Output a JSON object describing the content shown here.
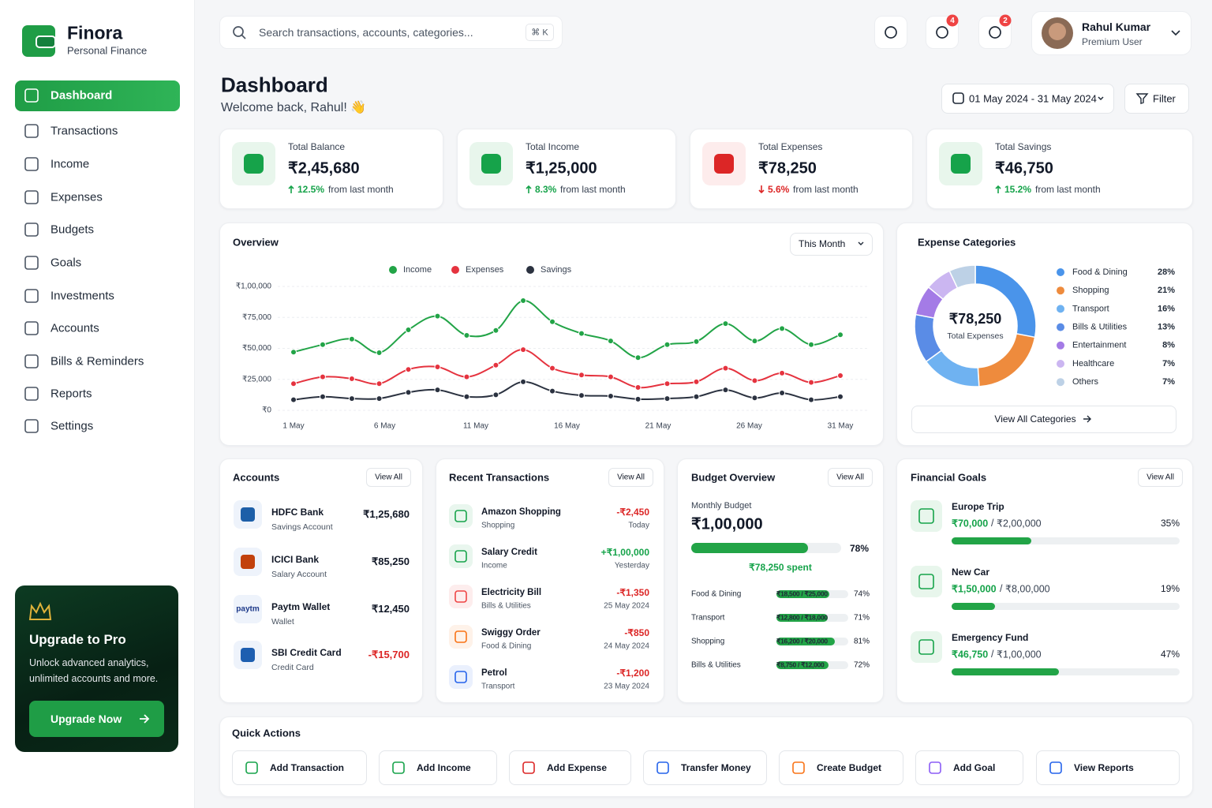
{
  "brand": {
    "name": "Finora",
    "tagline": "Personal Finance"
  },
  "nav": {
    "active": 0,
    "items": [
      "Dashboard",
      "Transactions",
      "Income",
      "Expenses",
      "Budgets",
      "Goals",
      "Investments",
      "Accounts",
      "Bills & Reminders",
      "Reports",
      "Settings"
    ]
  },
  "upgrade": {
    "title": "Upgrade to Pro",
    "text": "Unlock advanced analytics, unlimited accounts and more.",
    "button": "Upgrade Now"
  },
  "topbar": {
    "search_placeholder": "Search transactions, accounts, categories...",
    "shortcut": "⌘ K",
    "notifications": 4,
    "messages": 2,
    "user": {
      "name": "Rahul Kumar",
      "role": "Premium User"
    }
  },
  "header": {
    "title": "Dashboard",
    "welcome": "Welcome back, Rahul! 👋",
    "date_range": "01 May 2024 - 31 May 2024",
    "filter": "Filter"
  },
  "stats": [
    {
      "label": "Total Balance",
      "value": "₹2,45,680",
      "change": "12.5%",
      "direction": "up",
      "note": "from last month",
      "color": "#16a34a"
    },
    {
      "label": "Total Income",
      "value": "₹1,25,000",
      "change": "8.3%",
      "direction": "up",
      "note": "from last month",
      "color": "#16a34a"
    },
    {
      "label": "Total Expenses",
      "value": "₹78,250",
      "change": "5.6%",
      "direction": "down",
      "note": "from last month",
      "color": "#dc2626"
    },
    {
      "label": "Total Savings",
      "value": "₹46,750",
      "change": "15.2%",
      "direction": "up",
      "note": "from last month",
      "color": "#16a34a"
    }
  ],
  "chart_data": [
    {
      "type": "line",
      "title": "Overview",
      "control": "This Month",
      "grid": true,
      "legend": "top",
      "x": [
        1,
        2.6,
        4.2,
        5.7,
        7.3,
        8.9,
        10.5,
        12.1,
        13.6,
        15.2,
        16.8,
        18.4,
        19.9,
        21.5,
        23.1,
        24.7,
        26.3,
        27.8,
        29.4,
        31
      ],
      "xlim": [
        1,
        31
      ],
      "xticks": [
        {
          "value": 1,
          "label": "1 May"
        },
        {
          "value": 6,
          "label": "6 May"
        },
        {
          "value": 11,
          "label": "11 May"
        },
        {
          "value": 16,
          "label": "16 May"
        },
        {
          "value": 21,
          "label": "21 May"
        },
        {
          "value": 26,
          "label": "26 May"
        },
        {
          "value": 31,
          "label": "31 May"
        }
      ],
      "ylim": [
        0,
        100000
      ],
      "yticks": [
        {
          "value": 0,
          "label": "₹0"
        },
        {
          "value": 25000,
          "label": "₹25,000"
        },
        {
          "value": 50000,
          "label": "₹50,000"
        },
        {
          "value": 75000,
          "label": "₹75,000"
        },
        {
          "value": 100000,
          "label": "₹1,00,000"
        }
      ],
      "series": [
        {
          "name": "Income",
          "color": "#22a447",
          "values": [
            47000,
            53000,
            57500,
            46500,
            65000,
            76000,
            60500,
            64500,
            88500,
            71500,
            62000,
            56000,
            42500,
            53000,
            55500,
            70000,
            56000,
            66000,
            53000,
            61000
          ]
        },
        {
          "name": "Expenses",
          "color": "#e5333f",
          "values": [
            21500,
            27000,
            25500,
            21500,
            33000,
            35000,
            27000,
            36500,
            49000,
            34000,
            28500,
            27000,
            18500,
            21500,
            23000,
            34000,
            24000,
            30000,
            22500,
            28000
          ]
        },
        {
          "name": "Savings",
          "color": "#2b3240",
          "values": [
            8500,
            11000,
            9500,
            9500,
            14500,
            16500,
            11000,
            12500,
            23000,
            15500,
            12000,
            11500,
            9000,
            9500,
            11000,
            16500,
            10000,
            14000,
            8500,
            11000
          ]
        }
      ]
    },
    {
      "type": "donut",
      "title": "Expense Categories",
      "center_value": "₹78,250",
      "center_label": "Total Expenses",
      "button": "View All Categories",
      "categories": [
        "Food & Dining",
        "Shopping",
        "Transport",
        "Bills & Utilities",
        "Entertainment",
        "Healthcare",
        "Others"
      ],
      "values": [
        28,
        21,
        16,
        13,
        8,
        7,
        7
      ],
      "value_labels": [
        "28%",
        "21%",
        "16%",
        "13%",
        "8%",
        "7%",
        "7%"
      ],
      "colors": [
        "#4a94ea",
        "#ee8b3d",
        "#6fb2f1",
        "#5a8ce6",
        "#a47be6",
        "#cbb6f1",
        "#bdd1e6"
      ]
    }
  ],
  "accounts": {
    "title": "Accounts",
    "action": "View All",
    "items": [
      {
        "name": "HDFC Bank",
        "type": "Savings Account",
        "balance": "₹1,25,680"
      },
      {
        "name": "ICICI Bank",
        "type": "Salary Account",
        "balance": "₹85,250"
      },
      {
        "name": "Paytm Wallet",
        "type": "Wallet",
        "balance": "₹12,450",
        "logo": "paytm"
      },
      {
        "name": "SBI Credit Card",
        "type": "Credit Card",
        "balance": "-₹15,700"
      }
    ]
  },
  "transactions": {
    "title": "Recent Transactions",
    "action": "View All",
    "items": [
      {
        "name": "Amazon Shopping",
        "category": "Shopping",
        "amount": "-₹2,450",
        "date": "Today"
      },
      {
        "name": "Salary Credit",
        "category": "Income",
        "amount": "+₹1,00,000",
        "date": "Yesterday"
      },
      {
        "name": "Electricity Bill",
        "category": "Bills & Utilities",
        "amount": "-₹1,350",
        "date": "25 May 2024"
      },
      {
        "name": "Swiggy Order",
        "category": "Food & Dining",
        "amount": "-₹850",
        "date": "24 May 2024"
      },
      {
        "name": "Petrol",
        "category": "Transport",
        "amount": "-₹1,200",
        "date": "23 May 2024"
      }
    ]
  },
  "budget": {
    "title": "Budget Overview",
    "action": "View All",
    "label": "Monthly Budget",
    "amount": "₹1,00,000",
    "percent": 78,
    "percent_label": "78%",
    "spent": "₹78,250 spent",
    "items": [
      {
        "name": "Food & Dining",
        "amounts": "₹18,500 / ₹25,000",
        "percent": 74,
        "percent_label": "74%"
      },
      {
        "name": "Transport",
        "amounts": "₹12,800 / ₹18,000",
        "percent": 71,
        "percent_label": "71%"
      },
      {
        "name": "Shopping",
        "amounts": "₹16,200 / ₹20,000",
        "percent": 81,
        "percent_label": "81%"
      },
      {
        "name": "Bills & Utilities",
        "amounts": "₹8,750 / ₹12,000",
        "percent": 72,
        "percent_label": "72%"
      }
    ]
  },
  "goals": {
    "title": "Financial Goals",
    "action": "View All",
    "separator": "/",
    "items": [
      {
        "name": "Europe Trip",
        "saved": "₹70,000",
        "target": "₹2,00,000",
        "percent": 35,
        "percent_label": "35%"
      },
      {
        "name": "New Car",
        "saved": "₹1,50,000",
        "target": "₹8,00,000",
        "percent": 19,
        "percent_label": "19%"
      },
      {
        "name": "Emergency Fund",
        "saved": "₹46,750",
        "target": "₹1,00,000",
        "percent": 47,
        "percent_label": "47%"
      }
    ]
  },
  "quick_actions": {
    "title": "Quick Actions",
    "items": [
      "Add Transaction",
      "Add Income",
      "Add Expense",
      "Transfer Money",
      "Create Budget",
      "Add Goal",
      "View Reports"
    ]
  }
}
